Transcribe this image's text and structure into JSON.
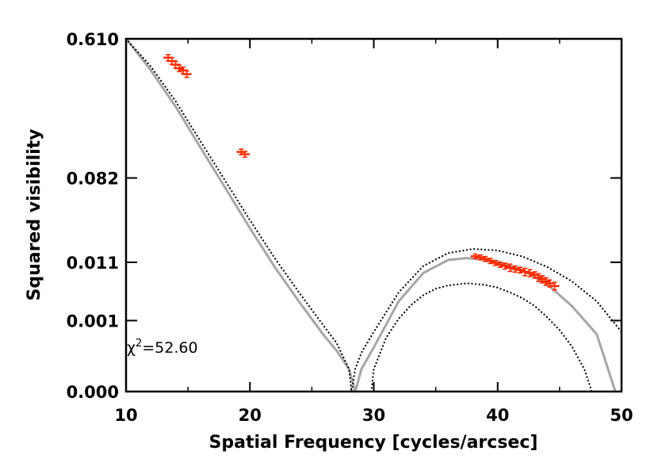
{
  "chart_data": {
    "type": "line",
    "title": "",
    "xlabel": "Spatial Frequency [cycles/arcsec]",
    "ylabel": "Squared visibility",
    "xlim": [
      10,
      50
    ],
    "yscale": "power",
    "x_ticks": [
      "10",
      "20",
      "30",
      "40",
      "50"
    ],
    "x_tick_values": [
      10,
      20,
      30,
      40,
      50
    ],
    "y_ticks": [
      "0.000",
      "0.001",
      "0.011",
      "0.082",
      "0.610"
    ],
    "y_tick_values": [
      0.0,
      0.001,
      0.011,
      0.082,
      0.61
    ],
    "annotation": {
      "symbol": "χ",
      "sup": "2",
      "text": "=52.60"
    },
    "colors": {
      "model": "#a6a6a6",
      "bounds": "#000000",
      "data": "#ff2a00"
    },
    "series": [
      {
        "style": "solid",
        "x": [
          10,
          12,
          14,
          16,
          18,
          20,
          22,
          24,
          26,
          27,
          28,
          28.5,
          29,
          30,
          32,
          34,
          36,
          37.5,
          40,
          42,
          44,
          46,
          48,
          49.5
        ],
        "y": [
          0.61,
          0.42,
          0.26,
          0.14,
          0.068,
          0.028,
          0.0095,
          0.0025,
          0.00038,
          0.00011,
          1e-05,
          0.0,
          1e-05,
          0.00015,
          0.0026,
          0.0078,
          0.0118,
          0.0125,
          0.0113,
          0.0086,
          0.0052,
          0.0021,
          0.00042,
          0.0
        ]
      },
      {
        "style": "dotted",
        "x": [
          10,
          12,
          14,
          16,
          18,
          20,
          22,
          24,
          26,
          27,
          28,
          28.2,
          28.5,
          29,
          30,
          32,
          34,
          36,
          38,
          40,
          42,
          44,
          46,
          48,
          50
        ],
        "y": [
          0.61,
          0.44,
          0.28,
          0.155,
          0.078,
          0.034,
          0.0125,
          0.0037,
          0.0007,
          0.00022,
          1e-05,
          0.0,
          1e-05,
          9e-05,
          0.0005,
          0.0038,
          0.0098,
          0.0145,
          0.0163,
          0.0156,
          0.0131,
          0.0095,
          0.0058,
          0.0026,
          0.0005
        ]
      },
      {
        "style": "dotted",
        "x": [
          29.8,
          30,
          31,
          32,
          33,
          34,
          35,
          36,
          37.5,
          39,
          40,
          41,
          42,
          43,
          44,
          45,
          46,
          47,
          47.6
        ],
        "y": [
          0.0,
          1e-05,
          0.00033,
          0.0011,
          0.0022,
          0.0034,
          0.0044,
          0.005,
          0.0054,
          0.0051,
          0.0046,
          0.0038,
          0.003,
          0.0021,
          0.0012,
          0.00056,
          0.00016,
          1e-05,
          0.0
        ]
      }
    ],
    "points": {
      "x": [
        13.4,
        13.7,
        14.0,
        14.3,
        14.6,
        14.9,
        19.3,
        19.6,
        38.2,
        38.6,
        39.0,
        39.4,
        39.8,
        40.2,
        40.6,
        41.0,
        41.4,
        41.8,
        42.2,
        42.6,
        43.0,
        43.3,
        43.6,
        43.9,
        44.2,
        44.6
      ],
      "y": [
        0.49,
        0.47,
        0.45,
        0.43,
        0.42,
        0.4,
        0.13,
        0.125,
        0.0132,
        0.0128,
        0.0122,
        0.0115,
        0.0108,
        0.0102,
        0.0098,
        0.0093,
        0.0089,
        0.0086,
        0.0081,
        0.0078,
        0.0073,
        0.0067,
        0.0063,
        0.0058,
        0.0054,
        0.0049
      ],
      "err": [
        0.018,
        0.018,
        0.018,
        0.017,
        0.017,
        0.016,
        0.006,
        0.006,
        0.0009,
        0.0009,
        0.0009,
        0.0009,
        0.0008,
        0.0008,
        0.0009,
        0.0011,
        0.0009,
        0.0008,
        0.001,
        0.0009,
        0.0008,
        0.0009,
        0.0008,
        0.0008,
        0.0007,
        0.0007
      ]
    }
  }
}
